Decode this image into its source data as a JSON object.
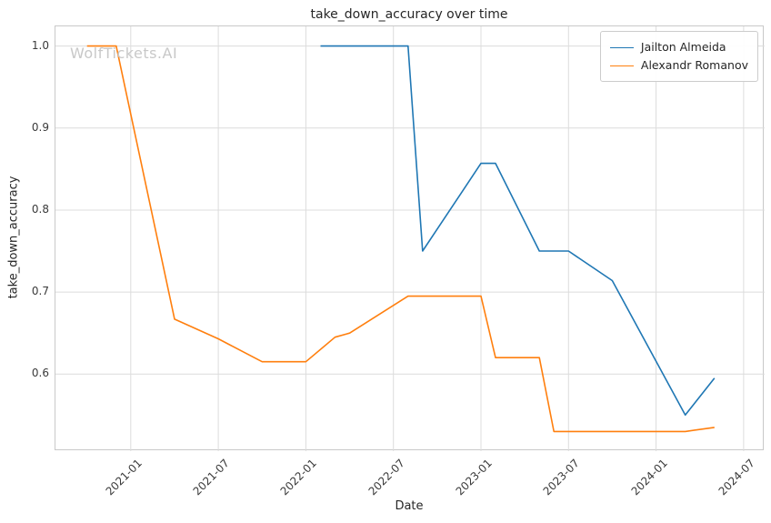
{
  "watermark": {
    "text": "WolfTickets.AI"
  },
  "chart_data": {
    "type": "line",
    "title": "take_down_accuracy over time",
    "xlabel": "Date",
    "ylabel": "take_down_accuracy",
    "x_ticks": [
      "2021-01",
      "2021-07",
      "2022-01",
      "2022-07",
      "2023-01",
      "2023-07",
      "2024-01",
      "2024-07"
    ],
    "y_ticks": [
      0.6,
      0.7,
      0.8,
      0.9,
      1.0
    ],
    "xlim": [
      2020.57,
      2024.62
    ],
    "ylim": [
      0.506,
      1.024
    ],
    "grid": true,
    "legend_position": "upper right",
    "colors": {
      "grid": "#dcdcdc",
      "border": "#c9c9c9",
      "watermark": "#c8c8c8",
      "tick_text": "#3a3a3a"
    },
    "series": [
      {
        "name": "Jailton Almeida",
        "color": "#1f77b4",
        "points": [
          [
            "2022-02",
            1.0
          ],
          [
            "2022-08",
            1.0
          ],
          [
            "2022-09",
            0.75
          ],
          [
            "2023-01",
            0.857
          ],
          [
            "2023-02",
            0.857
          ],
          [
            "2023-05",
            0.75
          ],
          [
            "2023-07",
            0.75
          ],
          [
            "2023-10",
            0.714
          ],
          [
            "2024-03",
            0.55
          ],
          [
            "2024-05",
            0.595
          ]
        ]
      },
      {
        "name": "Alexandr Romanov",
        "color": "#ff7f0e",
        "points": [
          [
            "2020-10",
            1.0
          ],
          [
            "2020-12",
            1.0
          ],
          [
            "2021-04",
            0.667
          ],
          [
            "2021-07",
            0.643
          ],
          [
            "2021-10",
            0.615
          ],
          [
            "2022-01",
            0.615
          ],
          [
            "2022-03",
            0.645
          ],
          [
            "2022-04",
            0.65
          ],
          [
            "2022-08",
            0.695
          ],
          [
            "2023-01",
            0.695
          ],
          [
            "2023-02",
            0.62
          ],
          [
            "2023-05",
            0.62
          ],
          [
            "2023-06",
            0.53
          ],
          [
            "2024-03",
            0.53
          ],
          [
            "2024-05",
            0.535
          ]
        ]
      }
    ]
  }
}
